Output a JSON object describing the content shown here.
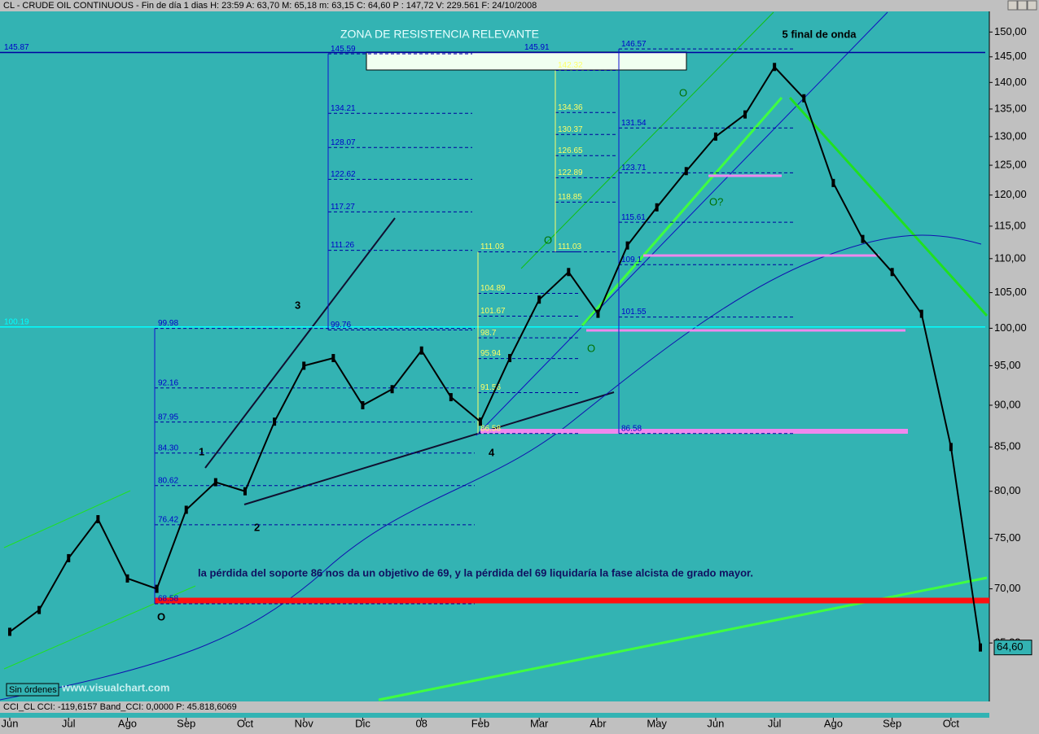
{
  "header": "CL - CRUDE OIL CONTINUOUS - Fin de día 1 dias H: 23:59 A: 63,70 M: 65,18 m: 63,15 C: 64,60 P : 147,72 V: 229.561 F: 24/10/2008",
  "footer": "CCI_CL  CCI: -119,6157  Band_CCI: 0,0000  P: 45.818,6069",
  "status": "Sin órdenes",
  "watermark": "www.visualchart.com",
  "chart_data": {
    "type": "line",
    "title": "ZONA DE RESISTENCIA RELEVANTE",
    "log_scale": true,
    "categories": [
      "Jun",
      null,
      "Jul",
      null,
      "Ago",
      null,
      "Sep",
      null,
      "Oct",
      null,
      "Nov",
      null,
      "Dic",
      null,
      "08",
      null,
      "Feb",
      null,
      "Mar",
      null,
      "Abr",
      null,
      "May",
      null,
      "Jun",
      null,
      "Jul",
      null,
      "Ago",
      null,
      "Sep",
      null,
      "Oct",
      null
    ],
    "series": [
      {
        "name": "CL",
        "color": "#000000",
        "values": [
          66,
          68,
          73,
          77,
          71,
          70,
          78,
          81,
          80,
          88,
          95,
          96,
          90,
          92,
          97,
          91,
          88,
          96,
          104,
          108,
          102,
          112,
          118,
          124,
          130,
          134,
          143,
          137,
          122,
          113,
          108,
          102,
          85,
          64.6
        ]
      }
    ],
    "last_price": {
      "value": 64.6,
      "label": "64,60"
    },
    "ylim": [
      60,
      154.3
    ],
    "yticks": [
      {
        "value": 150,
        "label": "150,00"
      },
      {
        "value": 145,
        "label": "145,00"
      },
      {
        "value": 140,
        "label": "140,00"
      },
      {
        "value": 135,
        "label": "135,00"
      },
      {
        "value": 130,
        "label": "130,00"
      },
      {
        "value": 125,
        "label": "125,00"
      },
      {
        "value": 120,
        "label": "120,00"
      },
      {
        "value": 115,
        "label": "115,00"
      },
      {
        "value": 110,
        "label": "110,00"
      },
      {
        "value": 105,
        "label": "105,00"
      },
      {
        "value": 100,
        "label": "100,00"
      },
      {
        "value": 95,
        "label": "95,00"
      },
      {
        "value": 90,
        "label": "90,00"
      },
      {
        "value": 85,
        "label": "85,00"
      },
      {
        "value": 80,
        "label": "80,00"
      },
      {
        "value": 75,
        "label": "75,00"
      },
      {
        "value": 70,
        "label": "70,00"
      },
      {
        "value": 65,
        "label": "65,00"
      }
    ],
    "levels": [
      {
        "color": "#0000c8",
        "items": [
          145.87
        ]
      },
      {
        "color": "#00ffff",
        "items": [
          100.19
        ]
      },
      {
        "color": "#0000c8",
        "items": [
          145.59,
          134.21,
          128.07,
          122.62,
          117.27,
          111.26,
          99.76
        ]
      },
      {
        "color": "#0000c8",
        "items": [
          99.98,
          92.16,
          87.95,
          {
            "value": 84.3,
            "label": "84.30"
          },
          80.62,
          76.42,
          68.58
        ]
      },
      {
        "color": "#ffff66",
        "items": [
          111.03,
          104.89,
          101.67,
          98.7,
          95.94,
          91.56,
          86.58
        ]
      },
      {
        "color": "#ffff66",
        "items": [
          142.32,
          134.36,
          130.37,
          126.65,
          122.89,
          118.85,
          111.03
        ]
      },
      {
        "color": "#0000c8",
        "items": [
          145.91
        ]
      },
      {
        "color": "#0000c8",
        "items": [
          146.57,
          131.54,
          123.71,
          115.61,
          109.1,
          101.55,
          86.58
        ]
      }
    ],
    "annotations": [
      "5 final de onda",
      "1",
      "2",
      "3",
      "4",
      "O",
      "O",
      "O",
      "O?",
      "O",
      "la pérdida del soporte 86 nos da un objetivo de 69, y la pérdida del 69 liquidaría la fase alcista de grado mayor."
    ]
  }
}
